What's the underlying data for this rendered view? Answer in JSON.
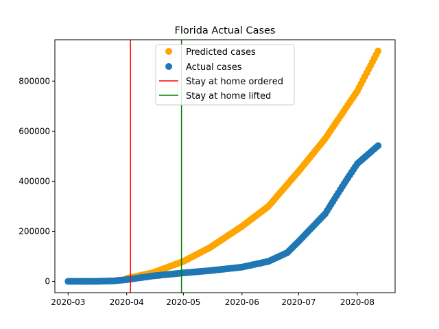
{
  "chart_data": {
    "type": "scatter",
    "title": "Florida Actual Cases",
    "xlabel": "",
    "ylabel": "",
    "x_ticks": [
      "2020-03",
      "2020-04",
      "2020-05",
      "2020-06",
      "2020-07",
      "2020-08"
    ],
    "y_ticks": [
      "0",
      "200000",
      "400000",
      "600000",
      "800000"
    ],
    "xlim": [
      "2020-02-23",
      "2020-08-21"
    ],
    "ylim": [
      -45000,
      965000
    ],
    "grid": false,
    "legend_position": "top-center",
    "series": [
      {
        "name": "Predicted cases",
        "kind": "scatter",
        "color": "#ffa500",
        "points": [
          [
            "2020-04-01",
            12000
          ],
          [
            "2020-04-15",
            35000
          ],
          [
            "2020-05-01",
            80000
          ],
          [
            "2020-05-15",
            135000
          ],
          [
            "2020-06-01",
            220000
          ],
          [
            "2020-06-15",
            300000
          ],
          [
            "2020-07-01",
            440000
          ],
          [
            "2020-07-15",
            570000
          ],
          [
            "2020-08-01",
            760000
          ],
          [
            "2020-08-12",
            920000
          ]
        ]
      },
      {
        "name": "Actual cases",
        "kind": "scatter",
        "color": "#1f77b4",
        "points": [
          [
            "2020-03-01",
            2
          ],
          [
            "2020-03-15",
            100
          ],
          [
            "2020-03-25",
            2000
          ],
          [
            "2020-04-01",
            7000
          ],
          [
            "2020-04-15",
            22000
          ],
          [
            "2020-05-01",
            34000
          ],
          [
            "2020-05-15",
            43000
          ],
          [
            "2020-06-01",
            57000
          ],
          [
            "2020-06-15",
            80000
          ],
          [
            "2020-06-25",
            115000
          ],
          [
            "2020-07-01",
            160000
          ],
          [
            "2020-07-15",
            270000
          ],
          [
            "2020-07-25",
            390000
          ],
          [
            "2020-08-01",
            470000
          ],
          [
            "2020-08-12",
            542000
          ]
        ]
      },
      {
        "name": "Stay at home ordered",
        "kind": "vline",
        "color": "#ff0000",
        "x": "2020-04-03"
      },
      {
        "name": "Stay at home lifted",
        "kind": "vline",
        "color": "#008000",
        "x": "2020-04-30"
      }
    ]
  }
}
